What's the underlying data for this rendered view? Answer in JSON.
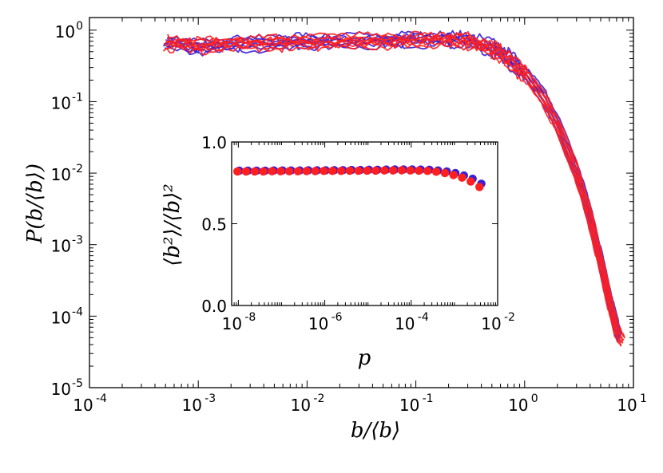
{
  "colors": {
    "series_a": "#3a1fd6",
    "series_b": "#ff1f1f",
    "frame": "#000000",
    "background": "#ffffff"
  },
  "chart_data": [
    {
      "type": "line",
      "title": "",
      "xlabel": "b/⟨b⟩",
      "ylabel": "P(b/⟨b⟩)",
      "xscale": "log",
      "yscale": "log",
      "xlim": [
        0.0001,
        10
      ],
      "ylim": [
        1e-05,
        1.5
      ],
      "xticks": [
        {
          "base": "10",
          "exp": "-4",
          "value": 0.0001
        },
        {
          "base": "10",
          "exp": "-3",
          "value": 0.001
        },
        {
          "base": "10",
          "exp": "-2",
          "value": 0.01
        },
        {
          "base": "10",
          "exp": "-1",
          "value": 0.1
        },
        {
          "base": "10",
          "exp": "0",
          "value": 1
        },
        {
          "base": "10",
          "exp": "1",
          "value": 10
        }
      ],
      "yticks": [
        {
          "base": "10",
          "exp": "-5",
          "value": 1e-05
        },
        {
          "base": "10",
          "exp": "-4",
          "value": 0.0001
        },
        {
          "base": "10",
          "exp": "-3",
          "value": 0.001
        },
        {
          "base": "10",
          "exp": "-2",
          "value": 0.01
        },
        {
          "base": "10",
          "exp": "-1",
          "value": 0.1
        },
        {
          "base": "10",
          "exp": "0",
          "value": 1
        }
      ],
      "series": [
        {
          "name": "blue curves",
          "color": "#3a1fd6",
          "x": [
            0.0005,
            0.001,
            0.002,
            0.005,
            0.01,
            0.02,
            0.05,
            0.1,
            0.2,
            0.3,
            0.5,
            0.7,
            1.0,
            1.5,
            2.0,
            3.0,
            4.0,
            5.0,
            6.0,
            7.0,
            7.5
          ],
          "y": [
            0.75,
            0.62,
            0.68,
            0.72,
            0.74,
            0.75,
            0.77,
            0.8,
            0.82,
            0.78,
            0.62,
            0.45,
            0.27,
            0.12,
            0.05,
            0.011,
            0.0025,
            0.0006,
            0.00018,
            7e-05,
            5e-05
          ]
        },
        {
          "name": "red curves",
          "color": "#ff1f1f",
          "x": [
            0.0005,
            0.001,
            0.002,
            0.005,
            0.01,
            0.02,
            0.05,
            0.1,
            0.2,
            0.3,
            0.5,
            0.7,
            1.0,
            1.5,
            2.0,
            3.0,
            4.0,
            5.0,
            6.0,
            7.0,
            8.0
          ],
          "y": [
            0.72,
            0.66,
            0.7,
            0.72,
            0.74,
            0.75,
            0.76,
            0.78,
            0.8,
            0.76,
            0.6,
            0.43,
            0.26,
            0.11,
            0.048,
            0.0105,
            0.0024,
            0.00058,
            0.00017,
            6.5e-05,
            4.5e-05
          ]
        }
      ]
    },
    {
      "type": "scatter",
      "title": "",
      "xlabel": "p",
      "ylabel": "⟨b²⟩/⟨b⟩²",
      "xscale": "log",
      "xlim": [
        7e-09,
        0.01
      ],
      "ylim": [
        0,
        1
      ],
      "xticks": [
        {
          "base": "10",
          "exp": "-8",
          "value": 1e-08
        },
        {
          "base": "10",
          "exp": "-6",
          "value": 1e-06
        },
        {
          "base": "10",
          "exp": "-4",
          "value": 0.0001
        },
        {
          "base": "10",
          "exp": "-2",
          "value": 0.01
        }
      ],
      "yticks": [
        {
          "label": "0.0",
          "value": 0
        },
        {
          "label": "0.5",
          "value": 0.5
        },
        {
          "label": "1.0",
          "value": 1.0
        }
      ],
      "series": [
        {
          "name": "blue points",
          "color": "#3a1fd6",
          "x": [
            1e-08,
            1.58e-08,
            2.51e-08,
            3.98e-08,
            6.31e-08,
            1e-07,
            1.58e-07,
            2.51e-07,
            3.98e-07,
            6.31e-07,
            1e-06,
            1.58e-06,
            2.51e-06,
            3.98e-06,
            6.31e-06,
            1e-05,
            1.58e-05,
            2.51e-05,
            3.98e-05,
            6.31e-05,
            0.0001,
            0.000158,
            0.000251,
            0.000398,
            0.000631,
            0.001,
            0.00158,
            0.00251,
            0.00398
          ],
          "y": [
            0.825,
            0.825,
            0.825,
            0.825,
            0.826,
            0.826,
            0.826,
            0.826,
            0.827,
            0.827,
            0.827,
            0.828,
            0.828,
            0.829,
            0.829,
            0.83,
            0.83,
            0.831,
            0.832,
            0.832,
            0.832,
            0.831,
            0.83,
            0.826,
            0.82,
            0.81,
            0.795,
            0.775,
            0.745
          ]
        },
        {
          "name": "red points",
          "color": "#ff1f1f",
          "x": [
            1e-08,
            1.58e-08,
            2.51e-08,
            3.98e-08,
            6.31e-08,
            1e-07,
            1.58e-07,
            2.51e-07,
            3.98e-07,
            6.31e-07,
            1e-06,
            1.58e-06,
            2.51e-06,
            3.98e-06,
            6.31e-06,
            1e-05,
            1.58e-05,
            2.51e-05,
            3.98e-05,
            6.31e-05,
            0.0001,
            0.000158,
            0.000251,
            0.000398,
            0.000631,
            0.001,
            0.00158,
            0.00251,
            0.00398
          ],
          "y": [
            0.82,
            0.82,
            0.82,
            0.82,
            0.821,
            0.821,
            0.821,
            0.821,
            0.822,
            0.822,
            0.823,
            0.823,
            0.823,
            0.824,
            0.824,
            0.825,
            0.825,
            0.826,
            0.826,
            0.827,
            0.826,
            0.825,
            0.823,
            0.818,
            0.81,
            0.798,
            0.782,
            0.758,
            0.725
          ]
        }
      ]
    }
  ]
}
